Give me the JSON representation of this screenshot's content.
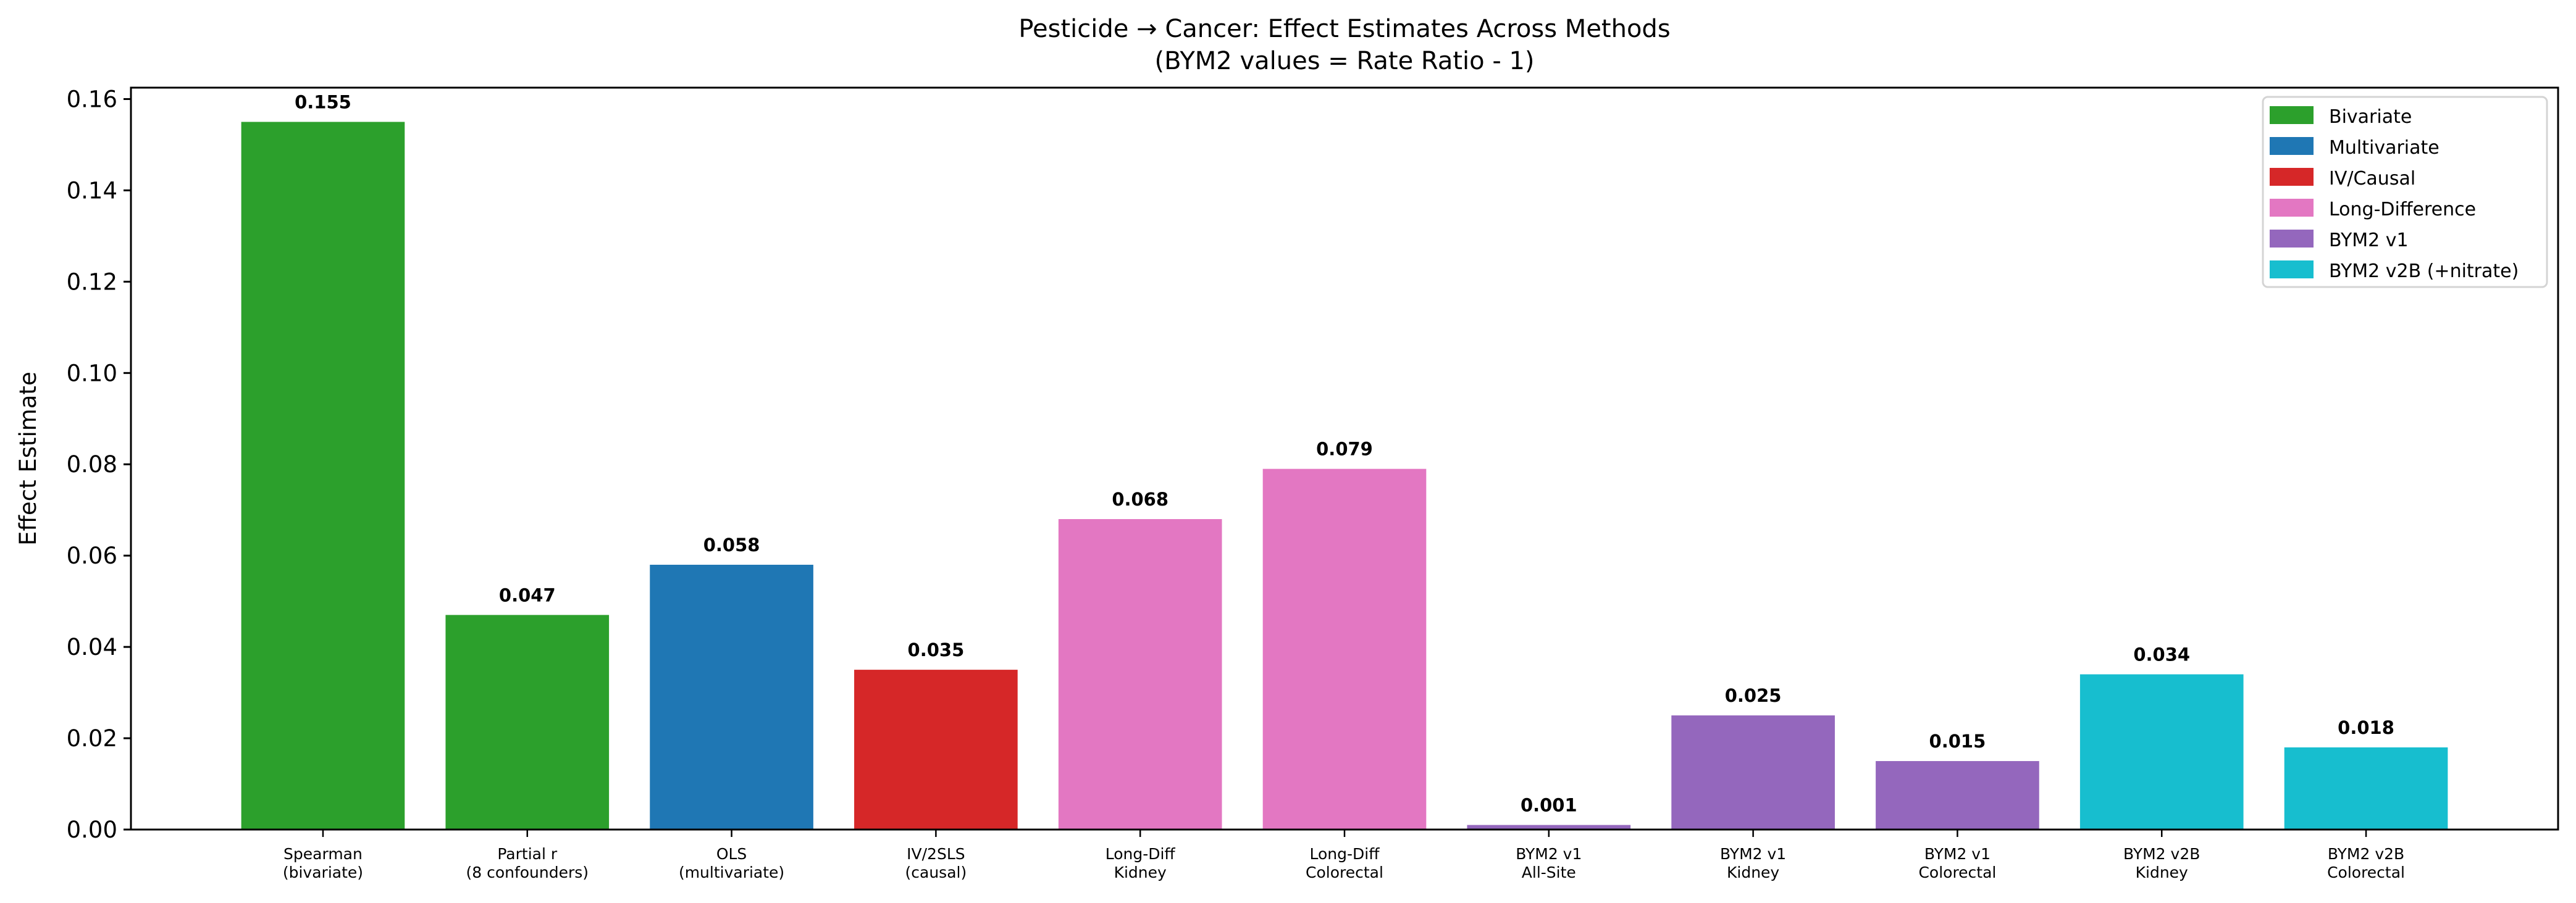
{
  "chart_data": {
    "type": "bar",
    "title": "Pesticide → Cancer: Effect Estimates Across Methods",
    "subtitle": "(BYM2 values = Rate Ratio - 1)",
    "xlabel": "",
    "ylabel": "Effect Estimate",
    "ylim": [
      0,
      0.1625
    ],
    "yticks": [
      "0.00",
      "0.02",
      "0.04",
      "0.06",
      "0.08",
      "0.10",
      "0.12",
      "0.14",
      "0.16"
    ],
    "grid": false,
    "legend_position": "top-right",
    "categories": [
      [
        "Spearman",
        "(bivariate)"
      ],
      [
        "Partial r",
        "(8 confounders)"
      ],
      [
        "OLS",
        "(multivariate)"
      ],
      [
        "IV/2SLS",
        "(causal)"
      ],
      [
        "Long-Diff",
        "Kidney"
      ],
      [
        "Long-Diff",
        "Colorectal"
      ],
      [
        "BYM2 v1",
        "All-Site"
      ],
      [
        "BYM2 v1",
        "Kidney"
      ],
      [
        "BYM2 v1",
        "Colorectal"
      ],
      [
        "BYM2 v2B",
        "Kidney"
      ],
      [
        "BYM2 v2B",
        "Colorectal"
      ]
    ],
    "values": [
      0.155,
      0.047,
      0.058,
      0.035,
      0.068,
      0.079,
      0.001,
      0.025,
      0.015,
      0.034,
      0.018
    ],
    "value_labels": [
      "0.155",
      "0.047",
      "0.058",
      "0.035",
      "0.068",
      "0.079",
      "0.001",
      "0.025",
      "0.015",
      "0.034",
      "0.018"
    ],
    "groups": [
      0,
      0,
      1,
      2,
      3,
      3,
      4,
      4,
      4,
      5,
      5
    ],
    "legend": [
      {
        "label": "Bivariate",
        "color": "#2ca02c"
      },
      {
        "label": "Multivariate",
        "color": "#1f77b4"
      },
      {
        "label": "IV/Causal",
        "color": "#d62728"
      },
      {
        "label": "Long-Difference",
        "color": "#e377c2"
      },
      {
        "label": "BYM2 v1",
        "color": "#9467bd"
      },
      {
        "label": "BYM2 v2B (+nitrate)",
        "color": "#17becf"
      }
    ]
  }
}
